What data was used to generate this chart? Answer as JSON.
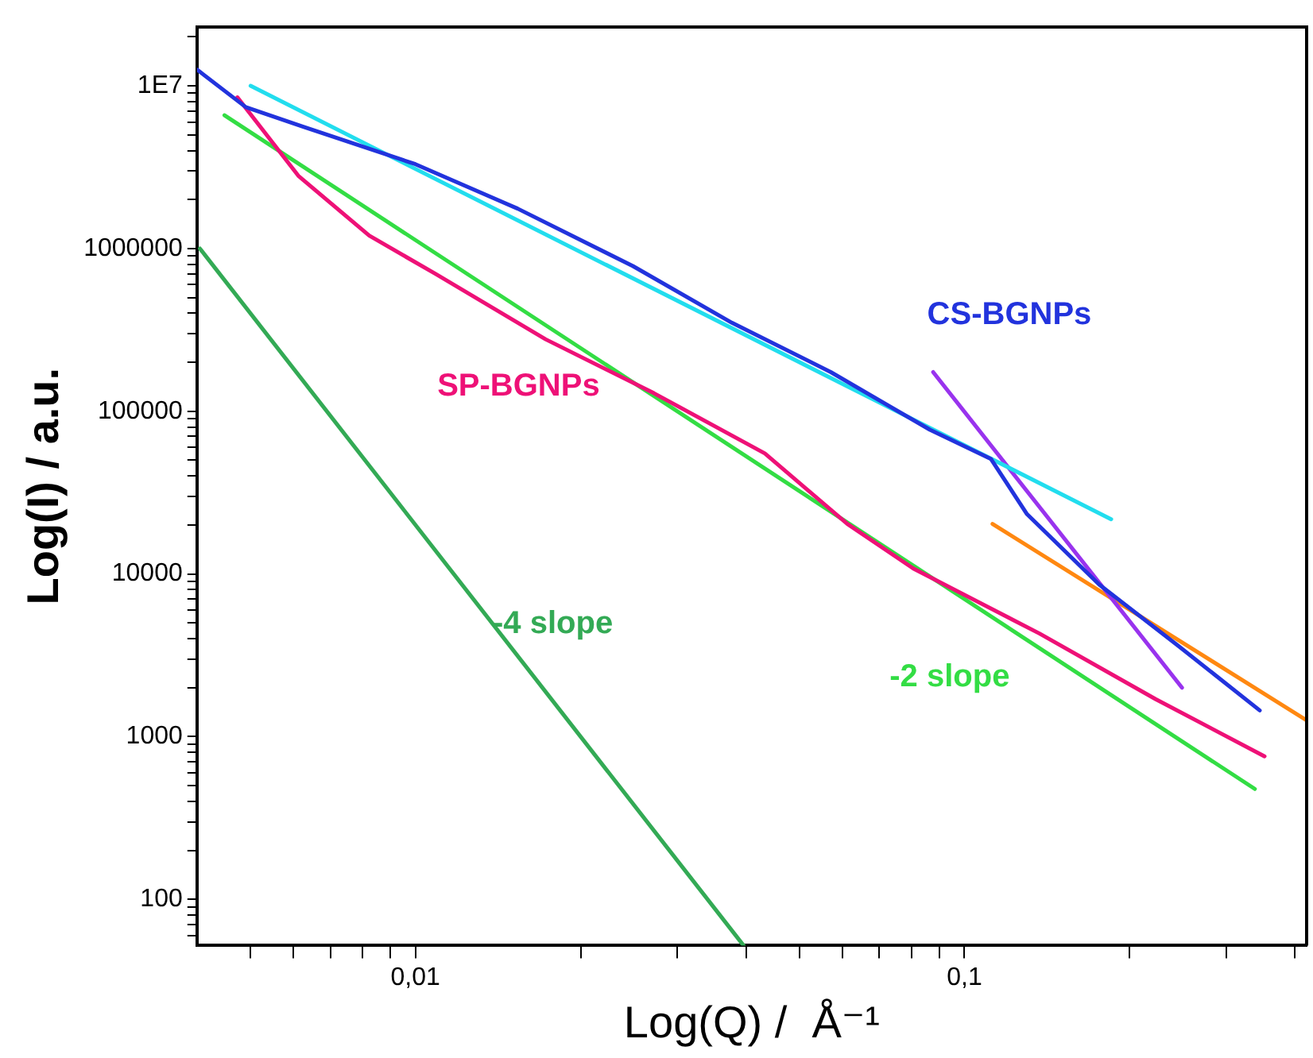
{
  "chart_data": {
    "type": "line",
    "xlabel": "Log(Q) /  Å⁻¹",
    "ylabel": "Log(I) / a.u.",
    "log": "xy",
    "grid": false,
    "legend": false,
    "marker": "none",
    "xlim": [
      0.004,
      0.42
    ],
    "ylim": [
      52,
      23000000
    ],
    "xticks": [
      {
        "value": 0.005,
        "label": null
      },
      {
        "value": 0.006,
        "label": null
      },
      {
        "value": 0.007,
        "label": null
      },
      {
        "value": 0.008,
        "label": null
      },
      {
        "value": 0.009,
        "label": null
      },
      {
        "value": 0.01,
        "label": "0,01"
      },
      {
        "value": 0.02,
        "label": null
      },
      {
        "value": 0.03,
        "label": null
      },
      {
        "value": 0.04,
        "label": null
      },
      {
        "value": 0.05,
        "label": null
      },
      {
        "value": 0.06,
        "label": null
      },
      {
        "value": 0.07,
        "label": null
      },
      {
        "value": 0.08,
        "label": null
      },
      {
        "value": 0.09,
        "label": null
      },
      {
        "value": 0.1,
        "label": "0,1"
      },
      {
        "value": 0.2,
        "label": null
      },
      {
        "value": 0.3,
        "label": null
      },
      {
        "value": 0.4,
        "label": null
      }
    ],
    "yticks": [
      {
        "value": 60,
        "label": null
      },
      {
        "value": 70,
        "label": null
      },
      {
        "value": 80,
        "label": null
      },
      {
        "value": 90,
        "label": null
      },
      100,
      {
        "value": 200,
        "label": null
      },
      {
        "value": 300,
        "label": null
      },
      {
        "value": 400,
        "label": null
      },
      {
        "value": 500,
        "label": null
      },
      {
        "value": 600,
        "label": null
      },
      {
        "value": 700,
        "label": null
      },
      {
        "value": 800,
        "label": null
      },
      {
        "value": 900,
        "label": null
      },
      1000,
      {
        "value": 2000,
        "label": null
      },
      {
        "value": 3000,
        "label": null
      },
      {
        "value": 4000,
        "label": null
      },
      {
        "value": 5000,
        "label": null
      },
      {
        "value": 6000,
        "label": null
      },
      {
        "value": 7000,
        "label": null
      },
      {
        "value": 8000,
        "label": null
      },
      {
        "value": 9000,
        "label": null
      },
      10000,
      {
        "value": 20000,
        "label": null
      },
      {
        "value": 30000,
        "label": null
      },
      {
        "value": 40000,
        "label": null
      },
      {
        "value": 50000,
        "label": null
      },
      {
        "value": 60000,
        "label": null
      },
      {
        "value": 70000,
        "label": null
      },
      {
        "value": 80000,
        "label": null
      },
      {
        "value": 90000,
        "label": null
      },
      100000,
      {
        "value": 200000,
        "label": null
      },
      {
        "value": 300000,
        "label": null
      },
      {
        "value": 400000,
        "label": null
      },
      {
        "value": 500000,
        "label": null
      },
      {
        "value": 600000,
        "label": null
      },
      {
        "value": 700000,
        "label": null
      },
      {
        "value": 800000,
        "label": null
      },
      {
        "value": 900000,
        "label": null
      },
      1000000,
      {
        "value": 2000000,
        "label": null
      },
      {
        "value": 3000000,
        "label": null
      },
      {
        "value": 4000000,
        "label": null
      },
      {
        "value": 5000000,
        "label": null
      },
      {
        "value": 6000000,
        "label": null
      },
      {
        "value": 7000000,
        "label": null
      },
      {
        "value": 8000000,
        "label": null
      },
      {
        "value": 9000000,
        "label": null
      },
      {
        "value": 10000000,
        "label": "1E7"
      },
      {
        "value": 20000000,
        "label": null
      }
    ],
    "series": [
      {
        "name": "CS-BGNPs",
        "color": "#2233dd",
        "x": [
          0.004,
          0.00491,
          0.00625,
          0.01,
          0.01535,
          0.0249,
          0.0377,
          0.0571,
          0.0865,
          0.1117,
          0.13,
          0.176,
          0.244,
          0.345
        ],
        "values": [
          12600000,
          7400000,
          5600000,
          3300000,
          1760000,
          780000,
          350000,
          174000,
          77000,
          51000,
          23300,
          8600,
          3660,
          1450
        ]
      },
      {
        "name": "SP-BGNPs",
        "color": "#ee1177",
        "x": [
          0.00474,
          0.00612,
          0.00824,
          0.01087,
          0.01726,
          0.0272,
          0.0433,
          0.0612,
          0.0807,
          0.137,
          0.223,
          0.352
        ],
        "values": [
          8500000,
          2800000,
          1200000,
          700000,
          277000,
          129000,
          55000,
          20300,
          10800,
          4300,
          1700,
          757
        ]
      },
      {
        "color": "#22ddee",
        "x": [
          0.00501,
          0.185
        ],
        "values": [
          10000000,
          21700
        ]
      },
      {
        "color": "#9933ee",
        "x": [
          0.0877,
          0.249
        ],
        "values": [
          174000,
          2000
        ]
      },
      {
        "color": "#ff8811",
        "x": [
          0.1125,
          0.42
        ],
        "values": [
          20300,
          1260
        ]
      },
      {
        "name": "-2 slope",
        "color": "#33dd44",
        "x": [
          0.00449,
          0.338
        ],
        "values": [
          6600000,
          477
        ]
      },
      {
        "name": "-4 slope",
        "color": "#33aa55",
        "x": [
          0.00405,
          0.0396
        ],
        "values": [
          1000000,
          52
        ]
      }
    ]
  }
}
